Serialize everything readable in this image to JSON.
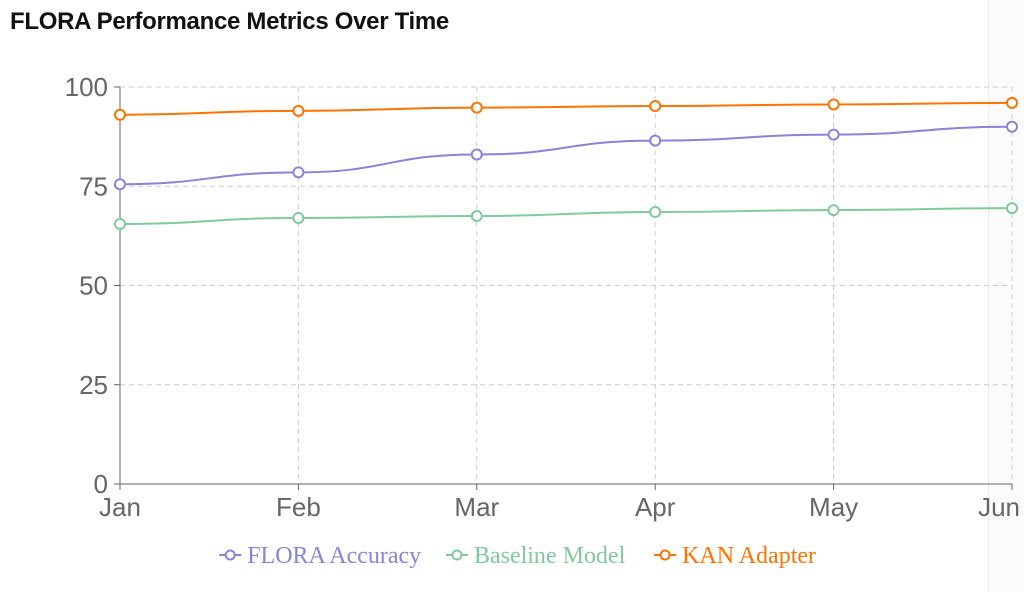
{
  "title": "FLORA Performance Metrics Over Time",
  "chart_data": {
    "type": "line",
    "categories": [
      "Jan",
      "Feb",
      "Mar",
      "Apr",
      "May",
      "Jun"
    ],
    "ylim": [
      0,
      100
    ],
    "yticks": [
      0,
      25,
      50,
      75,
      100
    ],
    "grid": true,
    "legend_position": "bottom",
    "series": [
      {
        "name": "FLORA Accuracy",
        "color": "#8884d8",
        "values": [
          75.5,
          78.5,
          83,
          86.5,
          88,
          90
        ]
      },
      {
        "name": "Baseline Model",
        "color": "#82ca9d",
        "values": [
          65.5,
          67,
          67.5,
          68.5,
          69,
          69.5
        ]
      },
      {
        "name": "KAN Adapter",
        "color": "#ff7300",
        "values": [
          93,
          94,
          94.8,
          95.2,
          95.6,
          96
        ]
      }
    ]
  }
}
